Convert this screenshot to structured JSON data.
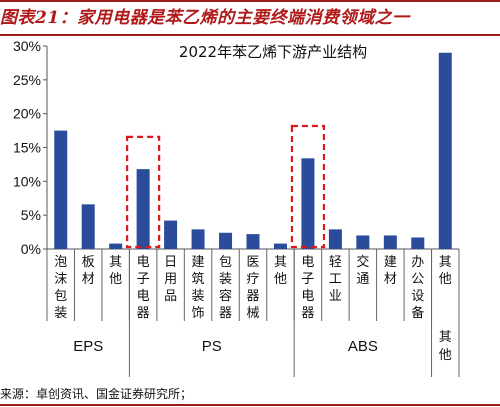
{
  "header": {
    "figure_label": "图表21：",
    "title": "家用电器是苯乙烯的主要终端消费领域之一"
  },
  "source": "来源：卓创资讯、国金证券研究所；",
  "colors": {
    "bar": "#2b4c9b",
    "highlight_box": "#d9191c",
    "header_text": "#b01a1a",
    "rule": "#9d1b1b"
  },
  "chart_data": {
    "type": "bar",
    "title": "2022年苯乙烯下游产业结构",
    "ylim": [
      0,
      30
    ],
    "yticks": [
      "0%",
      "5%",
      "10%",
      "15%",
      "20%",
      "25%",
      "30%"
    ],
    "grid": false,
    "legend": "none",
    "categories": [
      "泡沫包装",
      "板材",
      "其他",
      "电子电器",
      "日用品",
      "建筑装饰",
      "包装容器",
      "医疗器械",
      "其他",
      "电子电器",
      "轻工业",
      "交通",
      "建材",
      "办公设备",
      "其他"
    ],
    "values": [
      17.5,
      6.6,
      0.8,
      11.8,
      4.2,
      2.9,
      2.4,
      2.2,
      0.8,
      13.4,
      2.9,
      2.0,
      2.0,
      1.7,
      29.0
    ],
    "groups": [
      {
        "label": "EPS",
        "count": 3
      },
      {
        "label": "PS",
        "count": 6
      },
      {
        "label": "ABS",
        "count": 5
      },
      {
        "label": "其他",
        "count": 1
      }
    ],
    "highlighted": [
      3,
      9
    ]
  }
}
